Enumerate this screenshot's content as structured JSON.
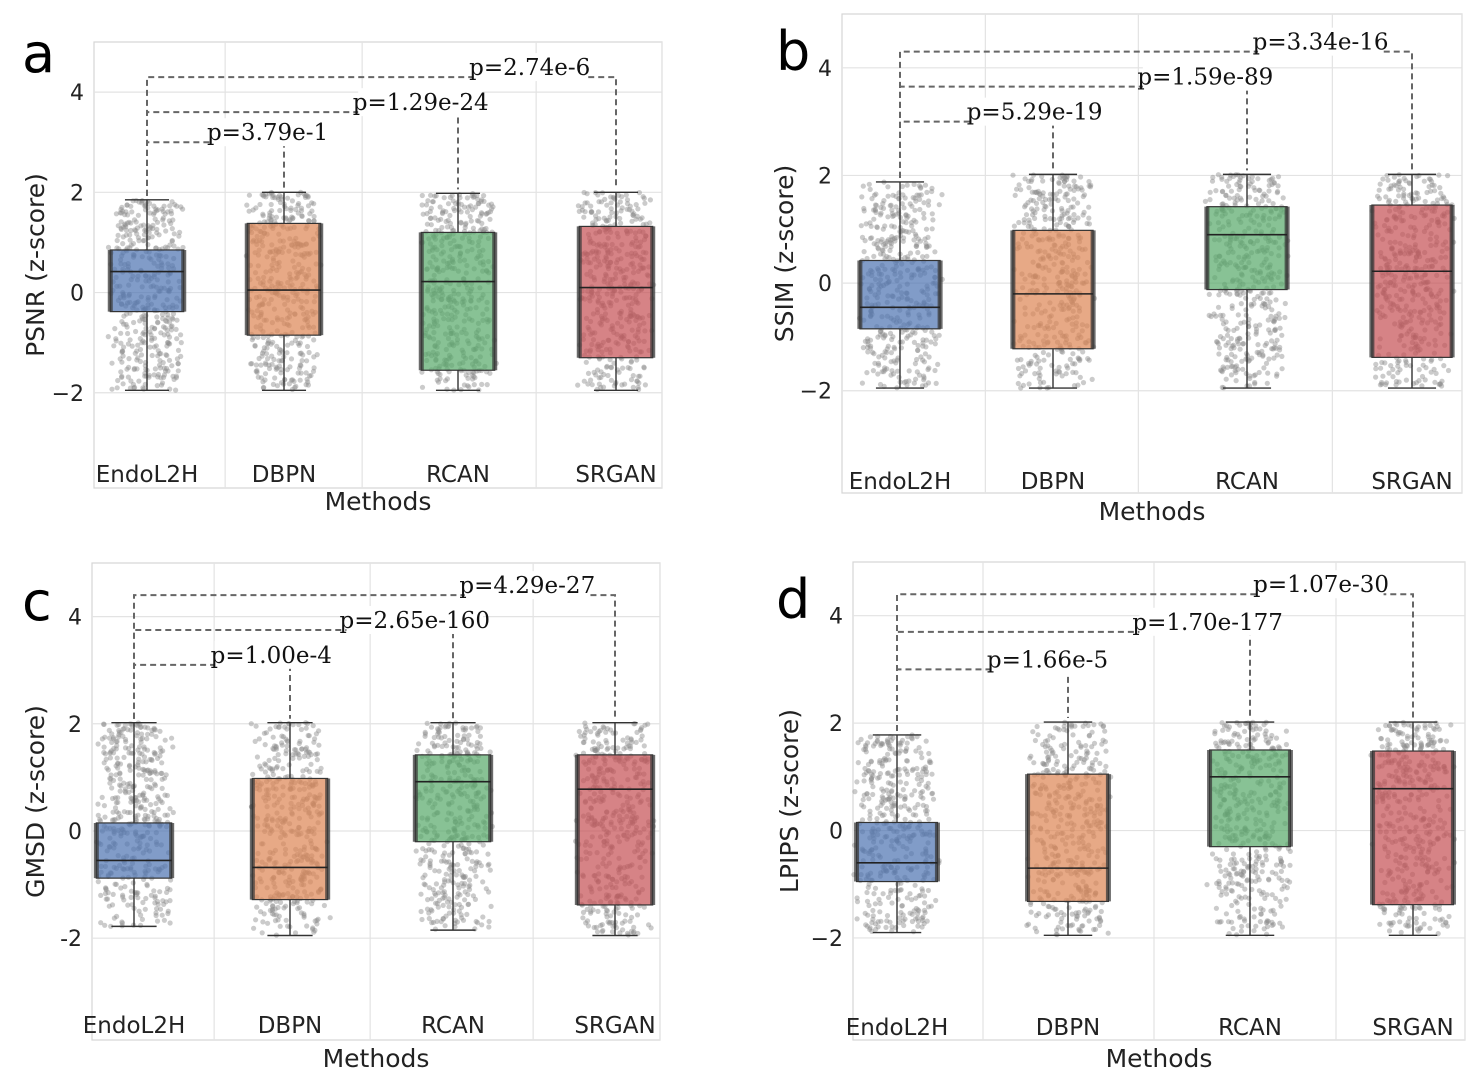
{
  "chart_data": [
    {
      "type": "box",
      "panel_label": "a",
      "ylabel": "PSNR (z-score)",
      "xlabel": "Methods",
      "categories": [
        "EndoL2H",
        "DBPN",
        "RCAN",
        "SRGAN"
      ],
      "ylim": [
        -3.9,
        5.0
      ],
      "yticks": [
        -2,
        0,
        2,
        4
      ],
      "ytick_labels": [
        "−2",
        "0",
        "2",
        "4"
      ],
      "grid": true,
      "colors": [
        "#4c72b0",
        "#dd8452",
        "#55a868",
        "#c44e52"
      ],
      "boxes": [
        {
          "whislo": -1.95,
          "q1": -0.38,
          "med": 0.42,
          "q3": 0.85,
          "whishi": 1.85
        },
        {
          "whislo": -1.95,
          "q1": -0.85,
          "med": 0.05,
          "q3": 1.38,
          "whishi": 2.0
        },
        {
          "whislo": -1.95,
          "q1": -1.55,
          "med": 0.22,
          "q3": 1.2,
          "whishi": 1.98
        },
        {
          "whislo": -1.95,
          "q1": -1.3,
          "med": 0.1,
          "q3": 1.32,
          "whishi": 2.0
        }
      ],
      "annotations": [
        {
          "from": 0,
          "to": 1,
          "y": 3.0,
          "text": "p=3.79e-1"
        },
        {
          "from": 0,
          "to": 2,
          "y": 3.6,
          "text": "p=1.29e-24"
        },
        {
          "from": 0,
          "to": 3,
          "y": 4.3,
          "text": "p=2.74e-6"
        }
      ]
    },
    {
      "type": "box",
      "panel_label": "b",
      "ylabel": "SSIM (z-score)",
      "xlabel": "Methods",
      "categories": [
        "EndoL2H",
        "DBPN",
        "RCAN",
        "SRGAN"
      ],
      "ylim": [
        -3.9,
        5.0
      ],
      "yticks": [
        -2,
        0,
        2,
        4
      ],
      "ytick_labels": [
        "−2",
        "0",
        "2",
        "4"
      ],
      "grid": true,
      "colors": [
        "#4c72b0",
        "#dd8452",
        "#55a868",
        "#c44e52"
      ],
      "boxes": [
        {
          "whislo": -1.95,
          "q1": -0.85,
          "med": -0.45,
          "q3": 0.42,
          "whishi": 1.88
        },
        {
          "whislo": -1.95,
          "q1": -1.22,
          "med": -0.2,
          "q3": 0.98,
          "whishi": 2.02
        },
        {
          "whislo": -1.95,
          "q1": -0.12,
          "med": 0.9,
          "q3": 1.42,
          "whishi": 2.02
        },
        {
          "whislo": -1.95,
          "q1": -1.38,
          "med": 0.22,
          "q3": 1.45,
          "whishi": 2.02
        }
      ],
      "annotations": [
        {
          "from": 0,
          "to": 1,
          "y": 3.0,
          "text": "p=5.29e-19"
        },
        {
          "from": 0,
          "to": 2,
          "y": 3.65,
          "text": "p=1.59e-89"
        },
        {
          "from": 0,
          "to": 3,
          "y": 4.3,
          "text": "p=3.34e-16"
        }
      ]
    },
    {
      "type": "box",
      "panel_label": "c",
      "ylabel": "GMSD (z-score)",
      "xlabel": "Methods",
      "categories": [
        "EndoL2H",
        "DBPN",
        "RCAN",
        "SRGAN"
      ],
      "ylim": [
        -3.9,
        5.0
      ],
      "yticks": [
        -2,
        0,
        2,
        4
      ],
      "ytick_labels": [
        "-2",
        "0",
        "2",
        "4"
      ],
      "grid": true,
      "colors": [
        "#4c72b0",
        "#dd8452",
        "#55a868",
        "#c44e52"
      ],
      "boxes": [
        {
          "whislo": -1.78,
          "q1": -0.88,
          "med": -0.55,
          "q3": 0.15,
          "whishi": 2.02
        },
        {
          "whislo": -1.95,
          "q1": -1.28,
          "med": -0.68,
          "q3": 0.98,
          "whishi": 2.02
        },
        {
          "whislo": -1.85,
          "q1": -0.2,
          "med": 0.92,
          "q3": 1.42,
          "whishi": 2.02
        },
        {
          "whislo": -1.95,
          "q1": -1.38,
          "med": 0.78,
          "q3": 1.42,
          "whishi": 2.02
        }
      ],
      "annotations": [
        {
          "from": 0,
          "to": 1,
          "y": 3.1,
          "text": "p=1.00e-4"
        },
        {
          "from": 0,
          "to": 2,
          "y": 3.75,
          "text": "p=2.65e-160"
        },
        {
          "from": 0,
          "to": 3,
          "y": 4.4,
          "text": "p=4.29e-27"
        }
      ]
    },
    {
      "type": "box",
      "panel_label": "d",
      "ylabel": "LPIPS (z-score)",
      "xlabel": "Methods",
      "categories": [
        "EndoL2H",
        "DBPN",
        "RCAN",
        "SRGAN"
      ],
      "ylim": [
        -3.9,
        5.0
      ],
      "yticks": [
        -2,
        0,
        2,
        4
      ],
      "ytick_labels": [
        "−2",
        "0",
        "2",
        "4"
      ],
      "grid": true,
      "colors": [
        "#4c72b0",
        "#dd8452",
        "#55a868",
        "#c44e52"
      ],
      "boxes": [
        {
          "whislo": -1.9,
          "q1": -0.95,
          "med": -0.6,
          "q3": 0.15,
          "whishi": 1.78
        },
        {
          "whislo": -1.95,
          "q1": -1.32,
          "med": -0.7,
          "q3": 1.05,
          "whishi": 2.02
        },
        {
          "whislo": -1.95,
          "q1": -0.3,
          "med": 1.0,
          "q3": 1.5,
          "whishi": 2.02
        },
        {
          "whislo": -1.95,
          "q1": -1.38,
          "med": 0.78,
          "q3": 1.48,
          "whishi": 2.02
        }
      ],
      "annotations": [
        {
          "from": 0,
          "to": 1,
          "y": 3.0,
          "text": "p=1.66e-5"
        },
        {
          "from": 0,
          "to": 2,
          "y": 3.7,
          "text": "p=1.70e-177"
        },
        {
          "from": 0,
          "to": 3,
          "y": 4.4,
          "text": "p=1.07e-30"
        }
      ]
    }
  ]
}
